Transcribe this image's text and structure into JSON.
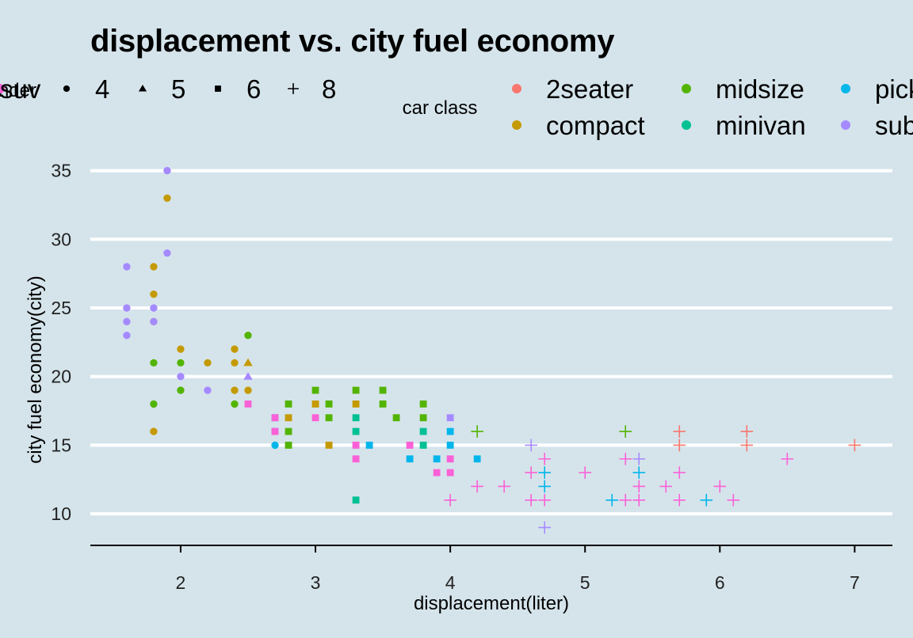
{
  "chart_data": {
    "type": "scatter",
    "title": "displacement vs. city fuel economy",
    "xlabel": "displacement(liter)",
    "ylabel": "city fuel economy(city)",
    "xlim": [
      1.33,
      7.28
    ],
    "ylim": [
      7.7,
      35.9
    ],
    "x_ticks": [
      2,
      3,
      4,
      5,
      6,
      7
    ],
    "y_ticks": [
      10,
      15,
      20,
      25,
      30,
      35
    ],
    "grid": "horizontal-major",
    "legend_position": "top",
    "shape_legend": {
      "title": "cylinder",
      "entries": [
        {
          "label": "4",
          "shape": "circle"
        },
        {
          "label": "5",
          "shape": "triangle"
        },
        {
          "label": "6",
          "shape": "square"
        },
        {
          "label": "8",
          "shape": "plus"
        }
      ]
    },
    "color_legend": {
      "title": "car class",
      "entries": [
        {
          "label": "2seater",
          "color": "#f8766d"
        },
        {
          "label": "compact",
          "color": "#c49a00"
        },
        {
          "label": "midsize",
          "color": "#53b400"
        },
        {
          "label": "minivan",
          "color": "#00c094"
        },
        {
          "label": "pickup",
          "color": "#00b6eb"
        },
        {
          "label": "subcompact",
          "color": "#a58aff"
        },
        {
          "label": "suv",
          "color": "#fb61d7"
        }
      ]
    },
    "points": [
      [
        1.6,
        28,
        "subcompact",
        4
      ],
      [
        1.6,
        25,
        "subcompact",
        4
      ],
      [
        1.6,
        24,
        "subcompact",
        4
      ],
      [
        1.6,
        23,
        "subcompact",
        4
      ],
      [
        1.8,
        28,
        "compact",
        4
      ],
      [
        1.8,
        26,
        "compact",
        4
      ],
      [
        1.8,
        24,
        "compact",
        4
      ],
      [
        1.8,
        25,
        "subcompact",
        4
      ],
      [
        1.8,
        24,
        "subcompact",
        4
      ],
      [
        1.8,
        21,
        "midsize",
        4
      ],
      [
        1.8,
        18,
        "midsize",
        4
      ],
      [
        1.8,
        16,
        "compact",
        4
      ],
      [
        1.9,
        35,
        "subcompact",
        4
      ],
      [
        1.9,
        33,
        "compact",
        4
      ],
      [
        1.9,
        29,
        "subcompact",
        4
      ],
      [
        2.0,
        22,
        "compact",
        4
      ],
      [
        2.0,
        21,
        "midsize",
        4
      ],
      [
        2.0,
        20,
        "subcompact",
        4
      ],
      [
        2.0,
        19,
        "midsize",
        4
      ],
      [
        2.2,
        21,
        "compact",
        4
      ],
      [
        2.2,
        19,
        "subcompact",
        4
      ],
      [
        2.4,
        22,
        "compact",
        4
      ],
      [
        2.4,
        21,
        "compact",
        4
      ],
      [
        2.4,
        19,
        "compact",
        4
      ],
      [
        2.4,
        18,
        "midsize",
        4
      ],
      [
        2.5,
        23,
        "midsize",
        4
      ],
      [
        2.5,
        21,
        "compact",
        5
      ],
      [
        2.5,
        20,
        "subcompact",
        5
      ],
      [
        2.5,
        19,
        "compact",
        4
      ],
      [
        2.5,
        18,
        "suv",
        6
      ],
      [
        2.7,
        17,
        "pickup",
        6
      ],
      [
        2.7,
        16,
        "pickup",
        6
      ],
      [
        2.7,
        15,
        "pickup",
        4
      ],
      [
        2.7,
        17,
        "suv",
        6
      ],
      [
        2.7,
        16,
        "suv",
        6
      ],
      [
        2.8,
        18,
        "midsize",
        6
      ],
      [
        2.8,
        17,
        "compact",
        6
      ],
      [
        2.8,
        16,
        "midsize",
        6
      ],
      [
        2.8,
        15,
        "midsize",
        6
      ],
      [
        3.0,
        19,
        "midsize",
        6
      ],
      [
        3.0,
        18,
        "compact",
        6
      ],
      [
        3.0,
        17,
        "suv",
        6
      ],
      [
        3.1,
        18,
        "midsize",
        6
      ],
      [
        3.1,
        17,
        "midsize",
        6
      ],
      [
        3.1,
        15,
        "compact",
        6
      ],
      [
        3.3,
        19,
        "midsize",
        6
      ],
      [
        3.3,
        18,
        "compact",
        6
      ],
      [
        3.3,
        17,
        "minivan",
        6
      ],
      [
        3.3,
        16,
        "minivan",
        6
      ],
      [
        3.3,
        15,
        "suv",
        6
      ],
      [
        3.3,
        14,
        "suv",
        6
      ],
      [
        3.3,
        11,
        "minivan",
        6
      ],
      [
        3.4,
        15,
        "pickup",
        6
      ],
      [
        3.5,
        19,
        "midsize",
        6
      ],
      [
        3.5,
        18,
        "midsize",
        6
      ],
      [
        3.6,
        17,
        "midsize",
        6
      ],
      [
        3.7,
        15,
        "suv",
        6
      ],
      [
        3.7,
        14,
        "pickup",
        6
      ],
      [
        3.8,
        18,
        "midsize",
        6
      ],
      [
        3.8,
        17,
        "midsize",
        6
      ],
      [
        3.8,
        16,
        "minivan",
        6
      ],
      [
        3.8,
        15,
        "minivan",
        6
      ],
      [
        3.9,
        14,
        "pickup",
        6
      ],
      [
        3.9,
        13,
        "suv",
        6
      ],
      [
        4.0,
        17,
        "subcompact",
        6
      ],
      [
        4.0,
        16,
        "pickup",
        6
      ],
      [
        4.0,
        15,
        "pickup",
        6
      ],
      [
        4.0,
        14,
        "suv",
        6
      ],
      [
        4.0,
        13,
        "suv",
        6
      ],
      [
        4.0,
        11,
        "suv",
        8
      ],
      [
        4.2,
        16,
        "midsize",
        8
      ],
      [
        4.2,
        14,
        "pickup",
        6
      ],
      [
        4.2,
        12,
        "suv",
        8
      ],
      [
        4.4,
        12,
        "suv",
        8
      ],
      [
        4.6,
        15,
        "subcompact",
        8
      ],
      [
        4.6,
        13,
        "suv",
        8
      ],
      [
        4.6,
        11,
        "suv",
        8
      ],
      [
        4.7,
        14,
        "suv",
        8
      ],
      [
        4.7,
        13,
        "pickup",
        8
      ],
      [
        4.7,
        12,
        "pickup",
        8
      ],
      [
        4.7,
        11,
        "suv",
        8
      ],
      [
        4.7,
        9,
        "subcompact",
        8
      ],
      [
        5.0,
        13,
        "suv",
        8
      ],
      [
        5.2,
        11,
        "pickup",
        8
      ],
      [
        5.3,
        16,
        "midsize",
        8
      ],
      [
        5.3,
        14,
        "suv",
        8
      ],
      [
        5.3,
        11,
        "suv",
        8
      ],
      [
        5.4,
        14,
        "subcompact",
        8
      ],
      [
        5.4,
        13,
        "pickup",
        8
      ],
      [
        5.4,
        12,
        "suv",
        8
      ],
      [
        5.4,
        11,
        "suv",
        8
      ],
      [
        5.6,
        12,
        "suv",
        8
      ],
      [
        5.7,
        16,
        "2seater",
        8
      ],
      [
        5.7,
        15,
        "2seater",
        8
      ],
      [
        5.7,
        13,
        "suv",
        8
      ],
      [
        5.7,
        11,
        "suv",
        8
      ],
      [
        5.9,
        11,
        "pickup",
        8
      ],
      [
        6.0,
        12,
        "suv",
        8
      ],
      [
        6.1,
        11,
        "suv",
        8
      ],
      [
        6.2,
        16,
        "2seater",
        8
      ],
      [
        6.2,
        15,
        "2seater",
        8
      ],
      [
        6.5,
        14,
        "suv",
        8
      ],
      [
        7.0,
        15,
        "2seater",
        8
      ]
    ]
  }
}
